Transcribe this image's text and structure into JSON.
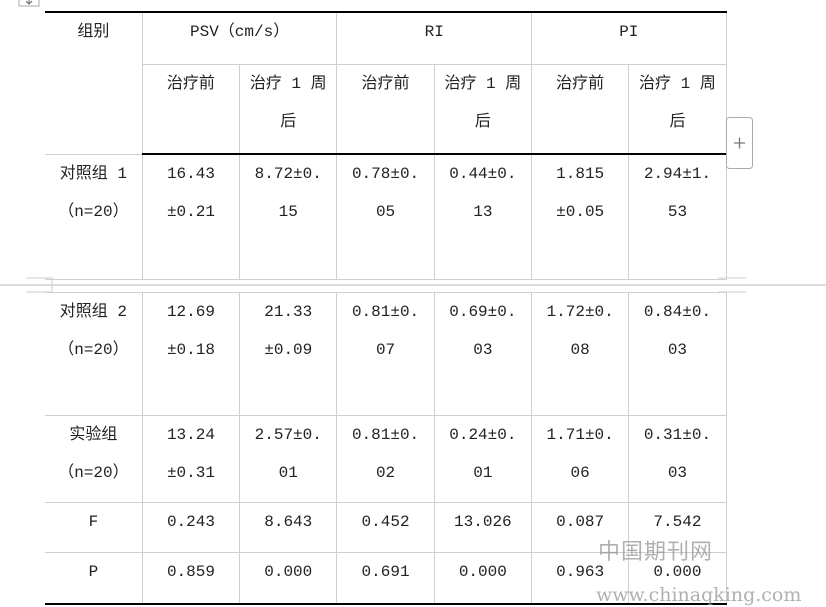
{
  "header": {
    "group": "组别",
    "groups": [
      "PSV（cm/s）",
      "RI",
      "PI"
    ],
    "subheaders": [
      "治疗前",
      "治疗 1 周后",
      "治疗前",
      "治疗 1 周后",
      "治疗前",
      "治疗 1 周后"
    ]
  },
  "rows": [
    {
      "group": "对照组 1",
      "n": "（n=20）",
      "cells": [
        "16.43±0.21",
        "8.72±0.15",
        "0.78±0.05",
        "0.44±0.13",
        "1.815±0.05",
        "2.94±1.53"
      ]
    },
    {
      "group": "对照组 2",
      "n": "（n=20）",
      "cells": [
        "12.69±0.18",
        "21.33±0.09",
        "0.81±0.07",
        "0.69±0.03",
        "1.72±0.08",
        "0.84±0.03"
      ]
    },
    {
      "group": "实验组",
      "n": "（n=20）",
      "cells": [
        "13.24±0.31",
        "2.57±0.01",
        "0.81±0.02",
        "0.24±0.01",
        "1.71±0.06",
        "0.31±0.03"
      ]
    },
    {
      "group": "F",
      "cells": [
        "0.243",
        "8.643",
        "0.452",
        "13.026",
        "0.087",
        "7.542"
      ]
    },
    {
      "group": "P",
      "cells": [
        "0.859",
        "0.000",
        "0.691",
        "0.000",
        "0.963",
        "0.000"
      ]
    }
  ],
  "watermark": {
    "name": "中国期刊网",
    "url": "www.chinaqking.com"
  }
}
